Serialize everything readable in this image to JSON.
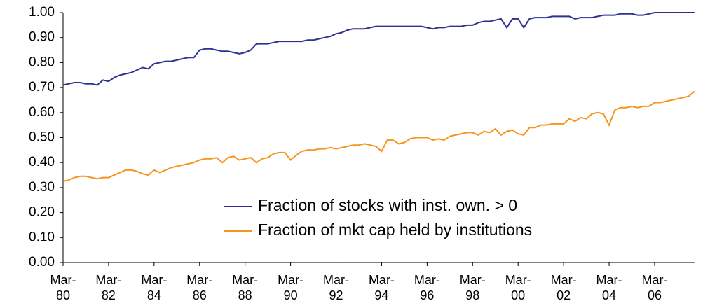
{
  "chart_data": {
    "type": "line",
    "categories": [
      "Mar-\n80",
      null,
      null,
      null,
      null,
      null,
      null,
      null,
      "Mar-\n82",
      null,
      null,
      null,
      null,
      null,
      null,
      null,
      "Mar-\n84",
      null,
      null,
      null,
      null,
      null,
      null,
      null,
      "Mar-\n86",
      null,
      null,
      null,
      null,
      null,
      null,
      null,
      "Mar-\n88",
      null,
      null,
      null,
      null,
      null,
      null,
      null,
      "Mar-\n90",
      null,
      null,
      null,
      null,
      null,
      null,
      null,
      "Mar-\n92",
      null,
      null,
      null,
      null,
      null,
      null,
      null,
      "Mar-\n94",
      null,
      null,
      null,
      null,
      null,
      null,
      null,
      "Mar-\n96",
      null,
      null,
      null,
      null,
      null,
      null,
      null,
      "Mar-\n98",
      null,
      null,
      null,
      null,
      null,
      null,
      null,
      "Mar-\n00",
      null,
      null,
      null,
      null,
      null,
      null,
      null,
      "Mar-\n02",
      null,
      null,
      null,
      null,
      null,
      null,
      null,
      "Mar-\n04",
      null,
      null,
      null,
      null,
      null,
      null,
      null,
      "Mar-\n06",
      null,
      null,
      null,
      null,
      null,
      null,
      null
    ],
    "series": [
      {
        "name": "Fraction of stocks with inst. own. > 0",
        "color": "#2e3192",
        "values": [
          0.71,
          0.715,
          0.72,
          0.72,
          0.715,
          0.715,
          0.71,
          0.73,
          0.725,
          0.74,
          0.75,
          0.755,
          0.76,
          0.77,
          0.78,
          0.775,
          0.795,
          0.8,
          0.805,
          0.805,
          0.81,
          0.815,
          0.82,
          0.82,
          0.85,
          0.855,
          0.855,
          0.85,
          0.845,
          0.845,
          0.84,
          0.835,
          0.84,
          0.85,
          0.875,
          0.875,
          0.875,
          0.88,
          0.885,
          0.885,
          0.885,
          0.885,
          0.885,
          0.89,
          0.89,
          0.895,
          0.9,
          0.905,
          0.915,
          0.92,
          0.93,
          0.935,
          0.935,
          0.935,
          0.94,
          0.945,
          0.945,
          0.945,
          0.945,
          0.945,
          0.945,
          0.945,
          0.945,
          0.945,
          0.94,
          0.935,
          0.94,
          0.94,
          0.945,
          0.945,
          0.945,
          0.95,
          0.95,
          0.96,
          0.965,
          0.965,
          0.97,
          0.975,
          0.94,
          0.975,
          0.975,
          0.94,
          0.975,
          0.98,
          0.98,
          0.98,
          0.985,
          0.985,
          0.985,
          0.985,
          0.975,
          0.98,
          0.98,
          0.98,
          0.985,
          0.99,
          0.99,
          0.99,
          0.995,
          0.995,
          0.995,
          0.99,
          0.99,
          0.995,
          1.0,
          1.0,
          1.0,
          1.0,
          1.0,
          1.0,
          1.0,
          1.0
        ]
      },
      {
        "name": "Fraction of mkt cap held by institutions",
        "color": "#f7941d",
        "values": [
          0.325,
          0.33,
          0.34,
          0.345,
          0.345,
          0.34,
          0.335,
          0.34,
          0.34,
          0.35,
          0.36,
          0.37,
          0.37,
          0.365,
          0.355,
          0.35,
          0.37,
          0.36,
          0.37,
          0.38,
          0.385,
          0.39,
          0.395,
          0.4,
          0.41,
          0.415,
          0.415,
          0.42,
          0.4,
          0.42,
          0.425,
          0.41,
          0.415,
          0.42,
          0.4,
          0.415,
          0.42,
          0.435,
          0.44,
          0.44,
          0.41,
          0.43,
          0.445,
          0.45,
          0.45,
          0.455,
          0.455,
          0.46,
          0.455,
          0.46,
          0.465,
          0.47,
          0.47,
          0.475,
          0.47,
          0.465,
          0.445,
          0.49,
          0.49,
          0.475,
          0.48,
          0.495,
          0.5,
          0.5,
          0.5,
          0.49,
          0.495,
          0.49,
          0.505,
          0.51,
          0.515,
          0.52,
          0.52,
          0.51,
          0.525,
          0.52,
          0.535,
          0.51,
          0.525,
          0.53,
          0.515,
          0.51,
          0.54,
          0.54,
          0.55,
          0.55,
          0.555,
          0.555,
          0.555,
          0.575,
          0.565,
          0.58,
          0.575,
          0.595,
          0.6,
          0.595,
          0.55,
          0.61,
          0.62,
          0.62,
          0.625,
          0.62,
          0.625,
          0.625,
          0.64,
          0.64,
          0.645,
          0.65,
          0.655,
          0.66,
          0.665,
          0.685
        ]
      }
    ],
    "ylim": [
      0,
      1
    ],
    "yticks": [
      {
        "value": 0,
        "label": "0.00"
      },
      {
        "value": 0.1,
        "label": "0.10"
      },
      {
        "value": 0.2,
        "label": "0.20"
      },
      {
        "value": 0.3,
        "label": "0.30"
      },
      {
        "value": 0.4,
        "label": "0.40"
      },
      {
        "value": 0.5,
        "label": "0.50"
      },
      {
        "value": 0.6,
        "label": "0.60"
      },
      {
        "value": 0.7,
        "label": "0.70"
      },
      {
        "value": 0.8,
        "label": "0.80"
      },
      {
        "value": 0.9,
        "label": "0.90"
      },
      {
        "value": 1,
        "label": "1.00"
      }
    ],
    "legend": "lower right"
  }
}
